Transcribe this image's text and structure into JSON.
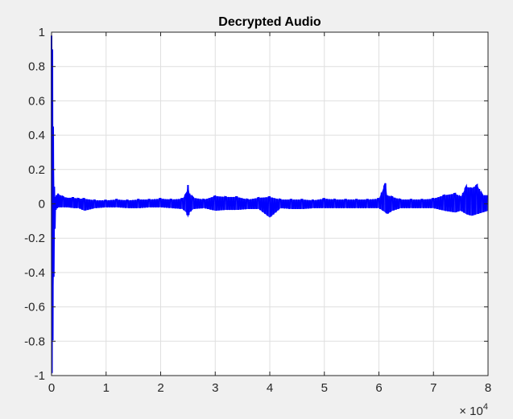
{
  "chart_data": {
    "type": "line",
    "title": "Decrypted Audio",
    "xlabel": "",
    "ylabel": "",
    "xlim": [
      0,
      80000
    ],
    "ylim": [
      -1,
      1
    ],
    "x_ticks": [
      0,
      10000,
      20000,
      30000,
      40000,
      50000,
      60000,
      70000,
      80000
    ],
    "x_tick_labels": [
      "0",
      "1",
      "2",
      "3",
      "4",
      "5",
      "6",
      "7",
      "8"
    ],
    "x_exponent_label": "× 10",
    "x_exponent_power": "4",
    "y_ticks": [
      1,
      0.8,
      0.6,
      0.4,
      0.2,
      0,
      -0.2,
      -0.4,
      -0.6,
      -0.8,
      -1
    ],
    "y_tick_labels": [
      "1",
      "0.8",
      "0.6",
      "0.4",
      "0.2",
      "0",
      "-0.2",
      "-0.4",
      "-0.6",
      "-0.8",
      "-1"
    ],
    "grid": true,
    "series": [
      {
        "color": "#0000ff",
        "x": [
          0,
          150,
          300,
          500,
          700,
          900,
          1200,
          1600,
          2200,
          3000,
          4000,
          5000,
          6000,
          8000,
          10000,
          12000,
          14000,
          16000,
          18000,
          20000,
          22000,
          24000,
          24700,
          25000,
          25300,
          26000,
          28000,
          30000,
          32000,
          34000,
          36000,
          38000,
          40000,
          42000,
          44000,
          46000,
          48000,
          50000,
          52000,
          54000,
          56000,
          58000,
          60000,
          61200,
          61500,
          62500,
          64000,
          66000,
          68000,
          70000,
          72000,
          74000,
          75000,
          76000,
          77000,
          78000,
          79000,
          80000
        ],
        "y_max": [
          0.98,
          0.9,
          0.45,
          0.1,
          0.04,
          0.05,
          0.06,
          0.05,
          0.04,
          0.035,
          0.035,
          0.03,
          0.03,
          0.02,
          0.02,
          0.025,
          0.02,
          0.025,
          0.025,
          0.03,
          0.025,
          0.03,
          0.06,
          0.11,
          0.06,
          0.035,
          0.025,
          0.045,
          0.04,
          0.04,
          0.025,
          0.035,
          0.04,
          0.025,
          0.025,
          0.025,
          0.02,
          0.03,
          0.025,
          0.025,
          0.025,
          0.025,
          0.03,
          0.12,
          0.05,
          0.04,
          0.025,
          0.025,
          0.025,
          0.03,
          0.05,
          0.06,
          0.04,
          0.1,
          0.09,
          0.11,
          0.05,
          0.05
        ],
        "y_min": [
          -0.98,
          -0.99,
          -0.6,
          -0.25,
          -0.04,
          -0.03,
          -0.02,
          -0.02,
          -0.02,
          -0.02,
          -0.025,
          -0.025,
          -0.04,
          -0.025,
          -0.02,
          -0.02,
          -0.025,
          -0.025,
          -0.02,
          -0.02,
          -0.025,
          -0.03,
          -0.05,
          -0.08,
          -0.05,
          -0.03,
          -0.025,
          -0.04,
          -0.035,
          -0.035,
          -0.03,
          -0.03,
          -0.08,
          -0.025,
          -0.03,
          -0.03,
          -0.025,
          -0.025,
          -0.025,
          -0.025,
          -0.025,
          -0.025,
          -0.025,
          -0.05,
          -0.06,
          -0.04,
          -0.025,
          -0.025,
          -0.025,
          -0.025,
          -0.04,
          -0.05,
          -0.04,
          -0.06,
          -0.07,
          -0.06,
          -0.05,
          -0.04
        ]
      }
    ]
  }
}
